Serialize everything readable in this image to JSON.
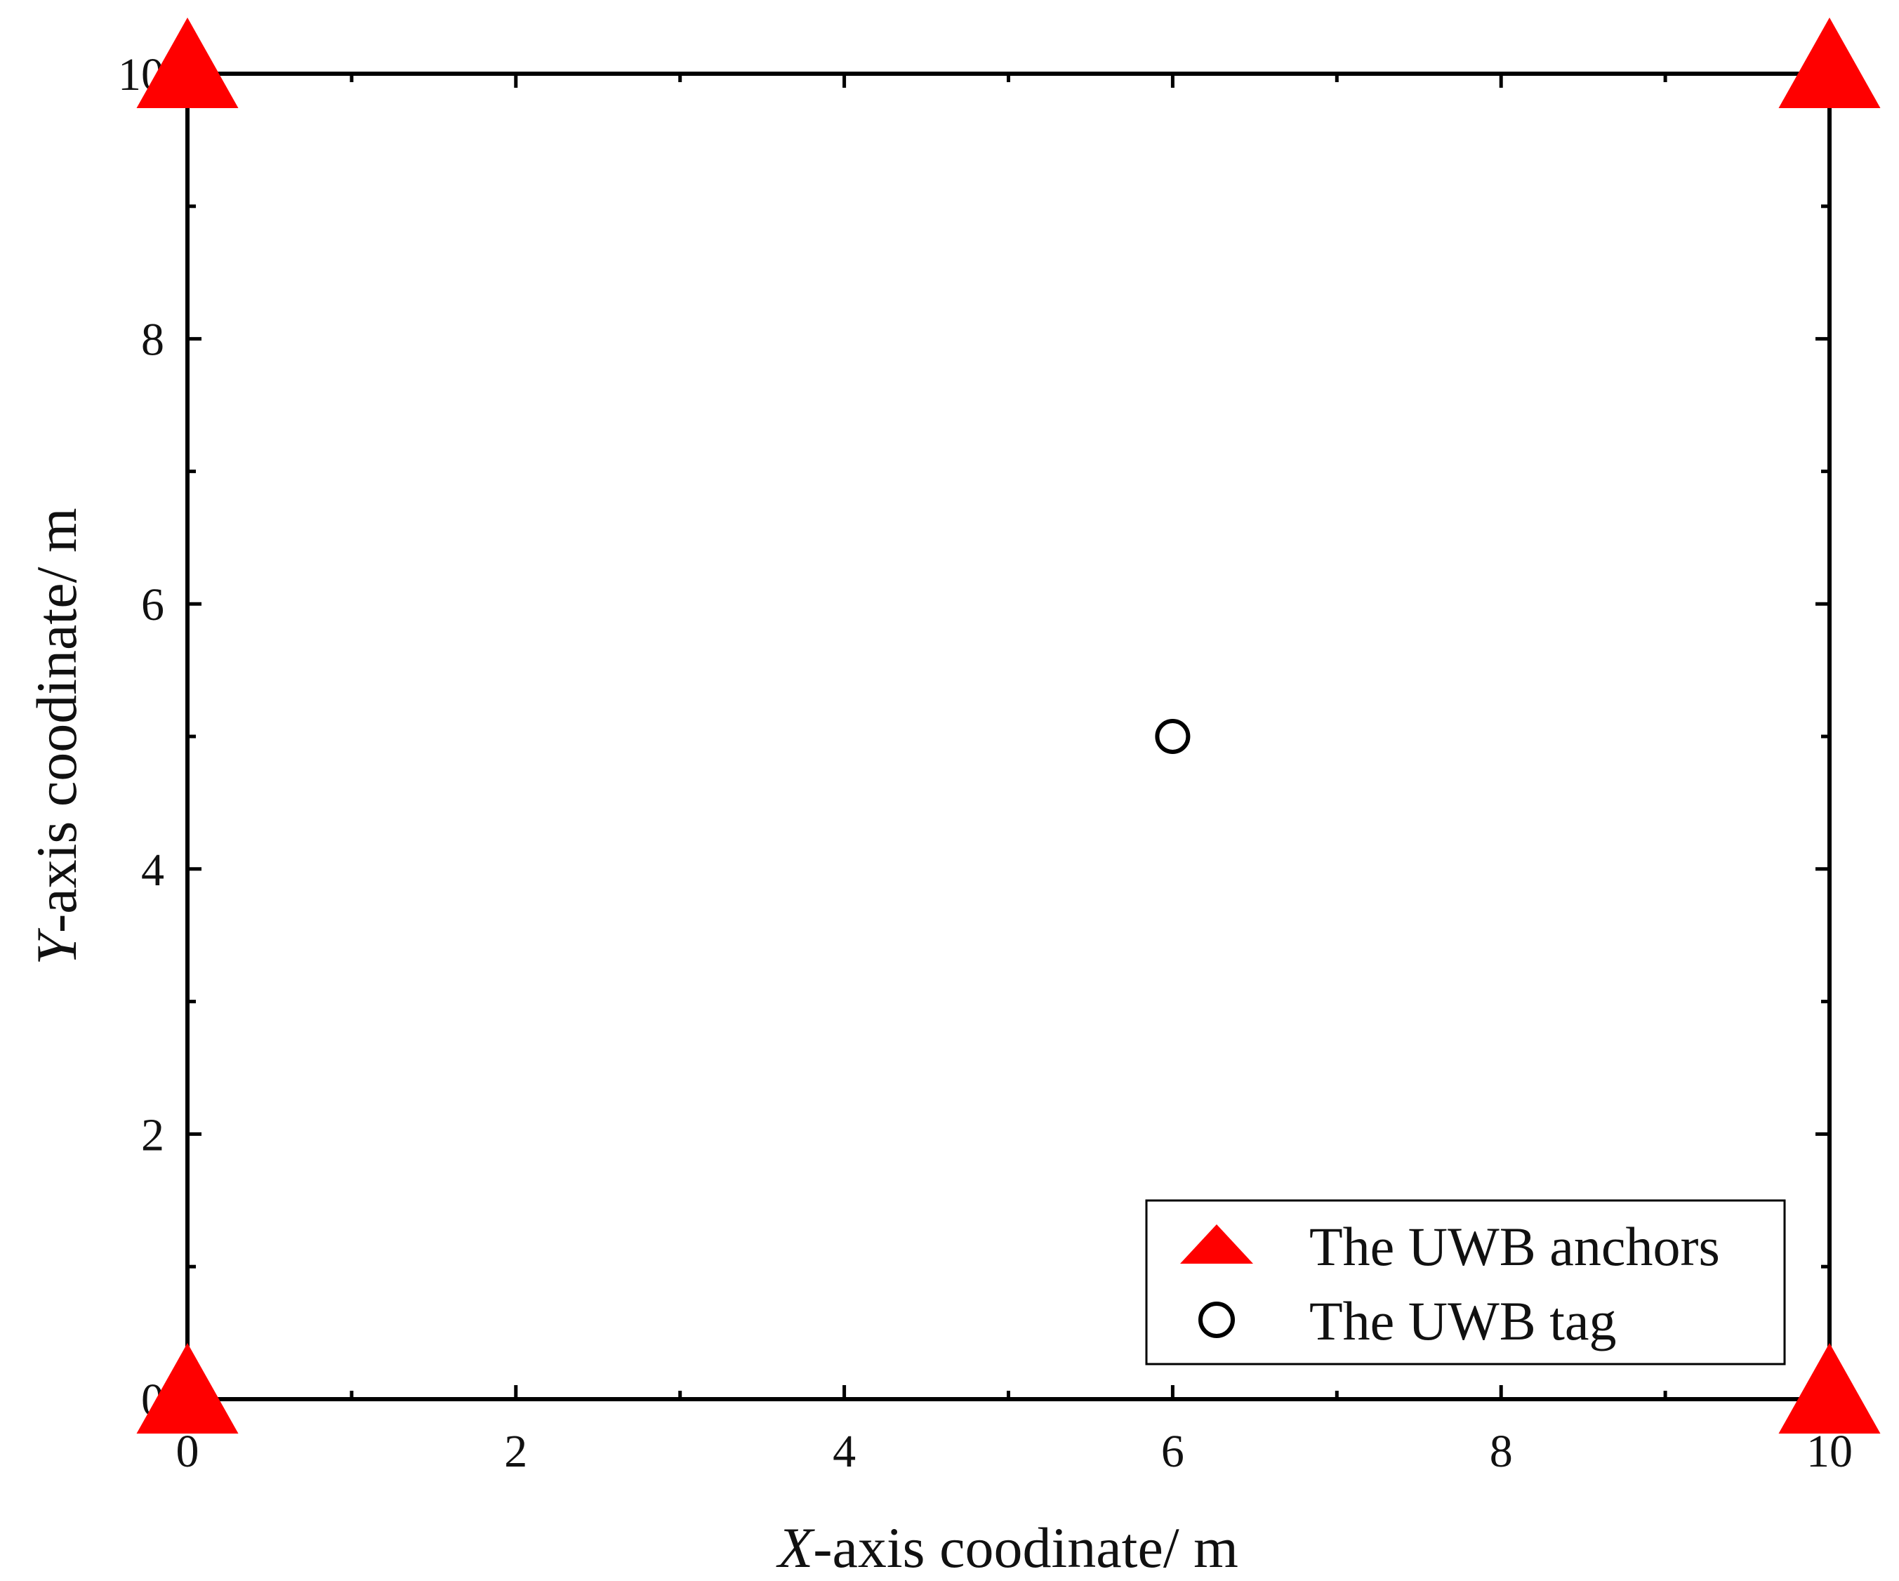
{
  "chart_data": {
    "type": "scatter",
    "title": "",
    "xlabel": "X-axis coodinate/ m",
    "xlabel_italic_part": "X",
    "xlabel_rest": "-axis coodinate/ m",
    "ylabel": "Y-axis coodinate/ m",
    "ylabel_italic_part": "Y",
    "ylabel_rest": "-axis coodinate/ m",
    "xlim": [
      0,
      10
    ],
    "ylim": [
      0,
      10
    ],
    "xticks": [
      "0",
      "2",
      "4",
      "6",
      "8",
      "10"
    ],
    "yticks": [
      "0",
      "2",
      "4",
      "6",
      "8",
      "10"
    ],
    "xtick_values": [
      0,
      2,
      4,
      6,
      8,
      10
    ],
    "ytick_values": [
      0,
      2,
      4,
      6,
      8,
      10
    ],
    "minor_tick_step": 1,
    "grid": false,
    "legend_position": "bottom-right",
    "series": [
      {
        "name": "The UWB anchors",
        "marker": "triangle",
        "color": "#ff0000",
        "points": [
          {
            "x": 0,
            "y": 10
          },
          {
            "x": 10,
            "y": 10
          },
          {
            "x": 0,
            "y": 0
          },
          {
            "x": 10,
            "y": 0
          }
        ]
      },
      {
        "name": "The UWB tag",
        "marker": "open-circle",
        "color": "#000000",
        "points": [
          {
            "x": 6,
            "y": 5
          }
        ]
      }
    ]
  }
}
